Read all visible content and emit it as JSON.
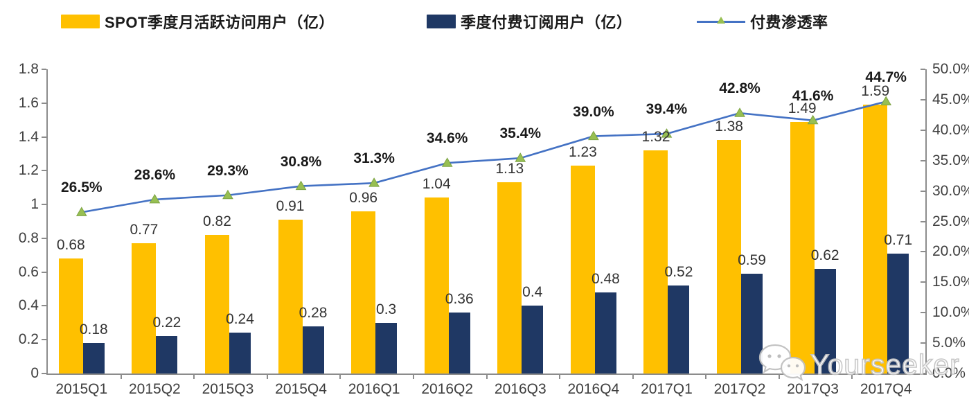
{
  "legend": [
    {
      "label": "SPOT季度月活跃访问用户（亿）",
      "swatch_color": "#FFC000"
    },
    {
      "label": "季度付费订阅用户（亿）",
      "swatch_color": "#1F3864"
    },
    {
      "label": "付费渗透率",
      "line_color": "#4472C4",
      "marker_color": "#97BF52"
    }
  ],
  "chart_data": {
    "type": "bar",
    "subtype": "combo dual-axis: grouped bars + percentage line",
    "categories": [
      "2015Q1",
      "2015Q2",
      "2015Q3",
      "2015Q4",
      "2016Q1",
      "2016Q2",
      "2016Q3",
      "2016Q4",
      "2017Q1",
      "2017Q2",
      "2017Q3",
      "2017Q4"
    ],
    "series": [
      {
        "name": "SPOT季度月活跃访问用户（亿）",
        "type": "bar",
        "axis": "left",
        "color": "#FFC000",
        "values": [
          0.68,
          0.77,
          0.82,
          0.91,
          0.96,
          1.04,
          1.13,
          1.23,
          1.32,
          1.38,
          1.49,
          1.59
        ],
        "labels": [
          "0.68",
          "0.77",
          "0.82",
          "0.91",
          "0.96",
          "1.04",
          "1.13",
          "1.23",
          "1.32",
          "1.38",
          "1.49",
          "1.59"
        ]
      },
      {
        "name": "季度付费订阅用户（亿）",
        "type": "bar",
        "axis": "left",
        "color": "#1F3864",
        "values": [
          0.18,
          0.22,
          0.24,
          0.28,
          0.3,
          0.36,
          0.4,
          0.48,
          0.52,
          0.59,
          0.62,
          0.71
        ],
        "labels": [
          "0.18",
          "0.22",
          "0.24",
          "0.28",
          "0.3",
          "0.36",
          "0.4",
          "0.48",
          "0.52",
          "0.59",
          "0.62",
          "0.71"
        ]
      },
      {
        "name": "付费渗透率",
        "type": "line",
        "axis": "right",
        "color": "#4472C4",
        "marker": "triangle",
        "marker_color": "#97BF52",
        "values": [
          26.5,
          28.6,
          29.3,
          30.8,
          31.3,
          34.6,
          35.4,
          39.0,
          39.4,
          42.8,
          41.6,
          44.7
        ],
        "labels": [
          "26.5%",
          "28.6%",
          "29.3%",
          "30.8%",
          "31.3%",
          "34.6%",
          "35.4%",
          "39.0%",
          "39.4%",
          "42.8%",
          "41.6%",
          "44.7%"
        ]
      }
    ],
    "left_axis": {
      "min": 0,
      "max": 1.8,
      "step": 0.2,
      "ticks": [
        "1.8",
        "1.6",
        "1.4",
        "1.2",
        "1",
        "0.8",
        "0.6",
        "0.4",
        "0.2",
        "0"
      ]
    },
    "right_axis": {
      "min": 0,
      "max": 50,
      "step": 5,
      "ticks": [
        "50.0%",
        "45.0%",
        "40.0%",
        "35.0%",
        "30.0%",
        "25.0%",
        "20.0%",
        "15.0%",
        "10.0%",
        "5.0%",
        "0.0%"
      ]
    },
    "grid": false,
    "legend_position": "top",
    "axis_color": "#8c8c8c",
    "label_color": "#3f3f3f"
  },
  "watermark": {
    "text": "Yourseeker",
    "icon": "wechat-icon"
  }
}
